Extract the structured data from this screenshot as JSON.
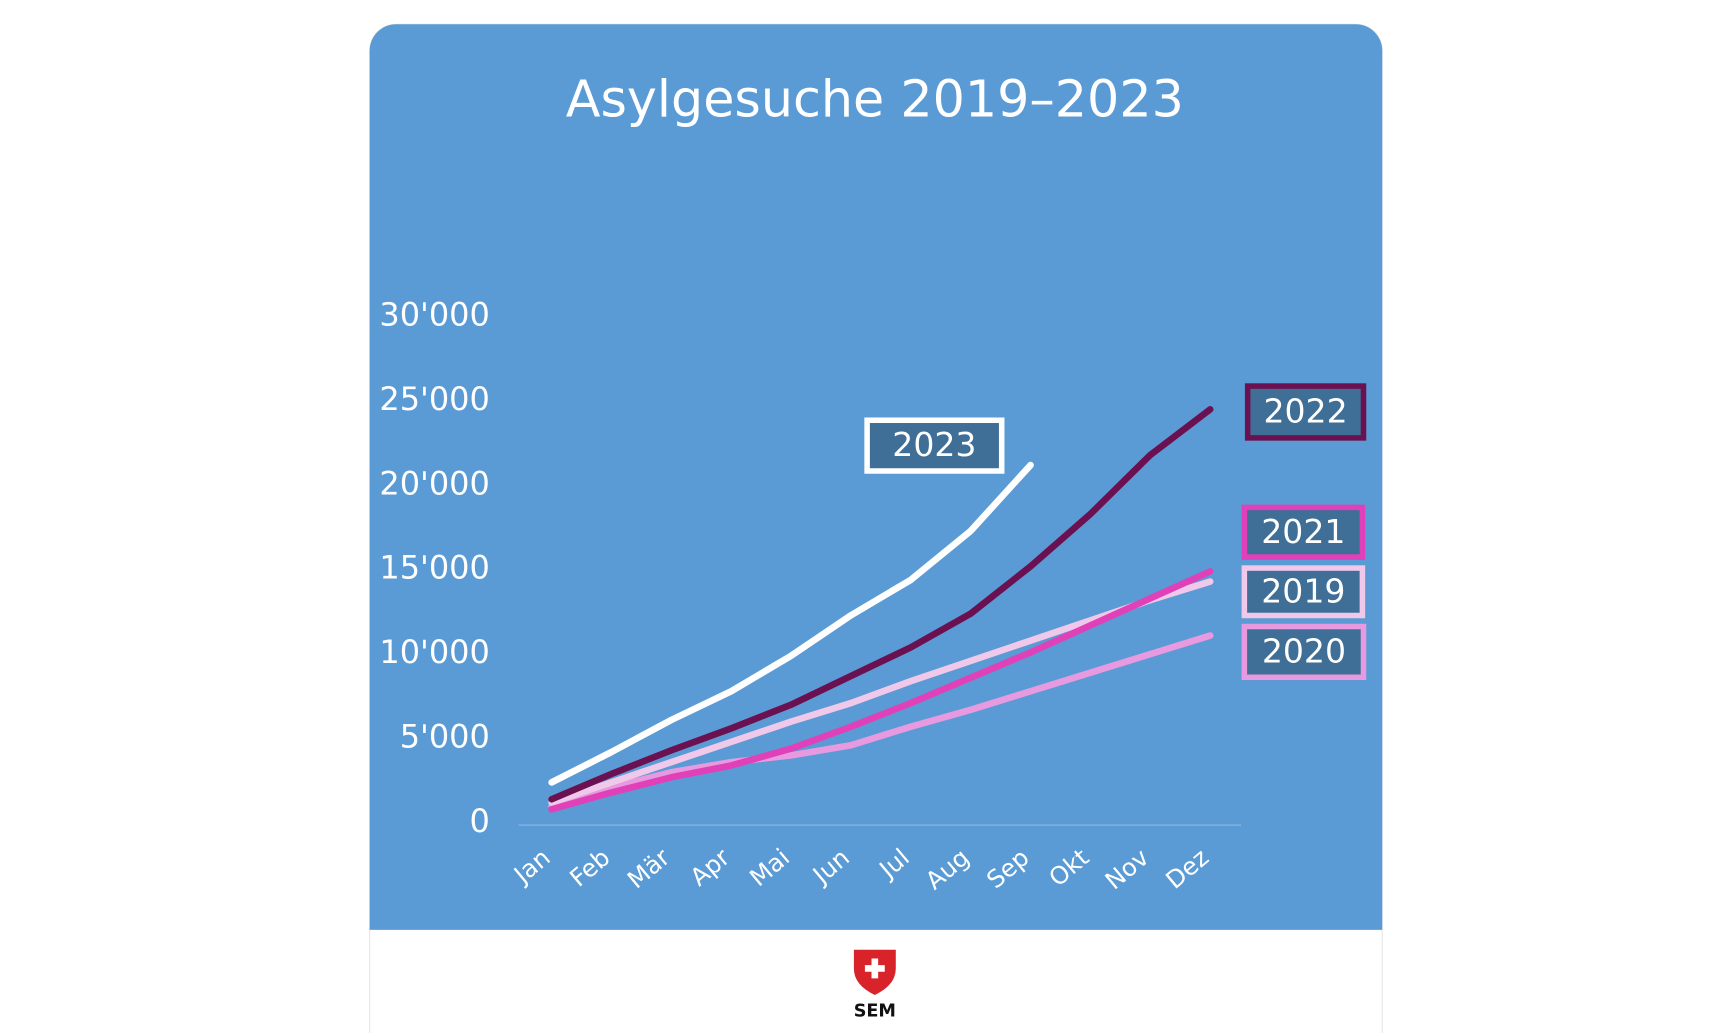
{
  "chart_data": {
    "type": "line",
    "title": "Asylgesuche 2019–2023",
    "categories": [
      "Jan",
      "Feb",
      "Mär",
      "Apr",
      "Mai",
      "Jun",
      "Jul",
      "Aug",
      "Sep",
      "Okt",
      "Nov",
      "Dez"
    ],
    "series": [
      {
        "name": "2023",
        "color": "#ffffff",
        "values": [
          2400,
          4200,
          6100,
          7800,
          9900,
          12300,
          14400,
          17300,
          21200,
          null,
          null,
          null
        ]
      },
      {
        "name": "2022",
        "color": "#6b1050",
        "values": [
          1400,
          2900,
          4300,
          5600,
          7000,
          8700,
          10400,
          12400,
          15200,
          18300,
          21800,
          24500
        ]
      },
      {
        "name": "2021",
        "color": "#e040b8",
        "values": [
          800,
          1800,
          2700,
          3400,
          4400,
          5700,
          7100,
          8600,
          10100,
          11700,
          13300,
          14900
        ]
      },
      {
        "name": "2019",
        "color": "#f0c8ea",
        "values": [
          1200,
          2400,
          3600,
          4800,
          6000,
          7100,
          8400,
          9600,
          10800,
          12000,
          13200,
          14300
        ]
      },
      {
        "name": "2020",
        "color": "#e89ae0",
        "values": [
          1000,
          2100,
          3000,
          3600,
          4000,
          4600,
          5700,
          6700,
          7800,
          8900,
          10000,
          11100
        ]
      }
    ],
    "ylim": [
      0,
      30000
    ],
    "yticks": [
      0,
      {
        "value": 5000,
        "label": "5'000"
      },
      {
        "value": 10000,
        "label": "10'000"
      },
      {
        "value": 15000,
        "label": "15'000"
      },
      {
        "value": 20000,
        "label": "20'000"
      },
      {
        "value": 25000,
        "label": "25'000"
      },
      {
        "value": 30000,
        "label": "30'000"
      }
    ],
    "grid": false,
    "logo": "SEM"
  }
}
